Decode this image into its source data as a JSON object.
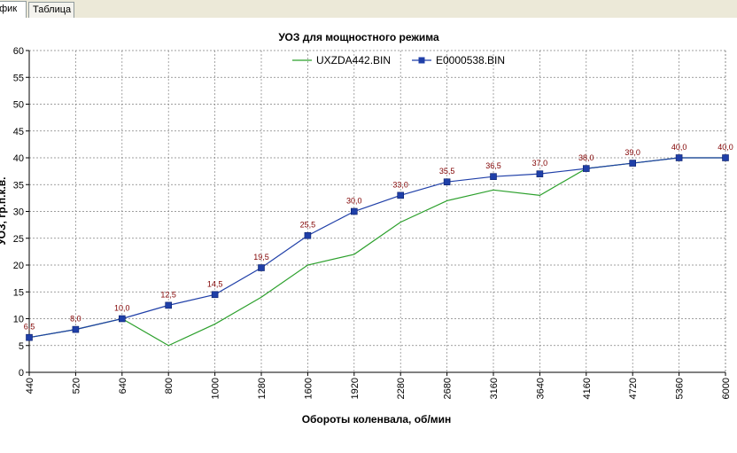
{
  "tabs": [
    {
      "label": "График",
      "visible_label": "афик",
      "active": true
    },
    {
      "label": "Таблица",
      "active": false
    }
  ],
  "chart_data": {
    "type": "line",
    "title": "УОЗ для мощностного режима",
    "xlabel": "Обороты коленвала, об/мин",
    "ylabel": "УОЗ, гр.п.к.в.",
    "categories": [
      "440",
      "520",
      "640",
      "800",
      "1000",
      "1280",
      "1600",
      "1920",
      "2280",
      "2680",
      "3160",
      "3640",
      "4160",
      "4720",
      "5360",
      "6000"
    ],
    "ylim": [
      0,
      60
    ],
    "yticks": [
      0,
      5,
      10,
      15,
      20,
      25,
      30,
      35,
      40,
      45,
      50,
      55,
      60
    ],
    "grid": true,
    "legend_position": "top",
    "series": [
      {
        "name": "UXZDA442.BIN",
        "color": "#2ca02c",
        "marker": "none",
        "values": [
          6.5,
          8.0,
          10.0,
          5.0,
          9.0,
          14.0,
          20.0,
          22.0,
          28.0,
          32.0,
          34.0,
          33.0,
          38.0,
          39.0,
          40.0,
          40.0
        ]
      },
      {
        "name": "E0000538.BIN",
        "color": "#1f3fa8",
        "marker": "square",
        "values": [
          6.5,
          8.0,
          10.0,
          12.5,
          14.5,
          19.5,
          25.5,
          30.0,
          33.0,
          35.5,
          36.5,
          37.0,
          38.0,
          39.0,
          40.0,
          40.0
        ],
        "data_labels": [
          "6,5",
          "8,0",
          "10,0",
          "12,5",
          "14,5",
          "19,5",
          "25,5",
          "30,0",
          "33,0",
          "35,5",
          "36,5",
          "37,0",
          "38,0",
          "39,0",
          "40,0",
          "40,0"
        ]
      }
    ],
    "colors": {
      "label": "#800000",
      "grid": "#808080",
      "axis": "#000000"
    }
  }
}
